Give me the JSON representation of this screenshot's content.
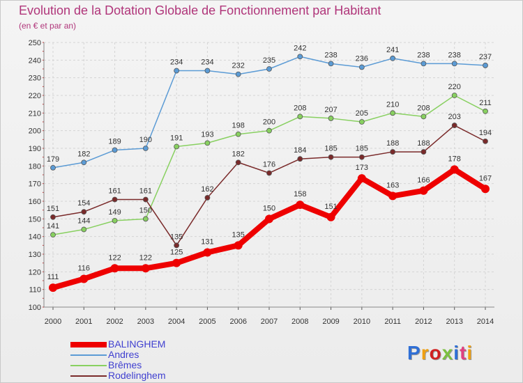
{
  "title": "Evolution de la Dotation Globale de Fonctionnement par Habitant",
  "subtitle": "(en € et par an)",
  "logo": {
    "text": "Proxiti",
    "colors": [
      "#2f6fd6",
      "#f0a010",
      "#d02020",
      "#7cc040",
      "#2f6fd6",
      "#e04080",
      "#f0a010"
    ]
  },
  "chart_data": {
    "type": "line",
    "x": [
      2000,
      2001,
      2002,
      2003,
      2004,
      2005,
      2006,
      2007,
      2008,
      2009,
      2010,
      2011,
      2012,
      2013,
      2014
    ],
    "ylim": [
      100,
      250
    ],
    "yticks": [
      100,
      110,
      120,
      130,
      140,
      150,
      160,
      170,
      180,
      190,
      200,
      210,
      220,
      230,
      240,
      250
    ],
    "grid": true,
    "series": [
      {
        "name": "BALINGHEM",
        "color": "#ee0000",
        "values": [
          111,
          116,
          122,
          122,
          125,
          131,
          135,
          150,
          158,
          151,
          173,
          163,
          166,
          178,
          167
        ]
      },
      {
        "name": "Andres",
        "color": "#5b9bd5",
        "values": [
          179,
          182,
          189,
          190,
          234,
          234,
          232,
          235,
          242,
          238,
          236,
          241,
          238,
          238,
          237
        ]
      },
      {
        "name": "Brêmes",
        "color": "#88d060",
        "values": [
          141,
          144,
          149,
          150,
          191,
          193,
          198,
          200,
          208,
          207,
          205,
          210,
          208,
          220,
          211
        ]
      },
      {
        "name": "Rodelinghem",
        "color": "#7a2a2a",
        "values": [
          151,
          154,
          161,
          161,
          135,
          162,
          182,
          176,
          184,
          185,
          185,
          188,
          188,
          203,
          194
        ]
      }
    ],
    "legend_position": "bottom-left"
  }
}
